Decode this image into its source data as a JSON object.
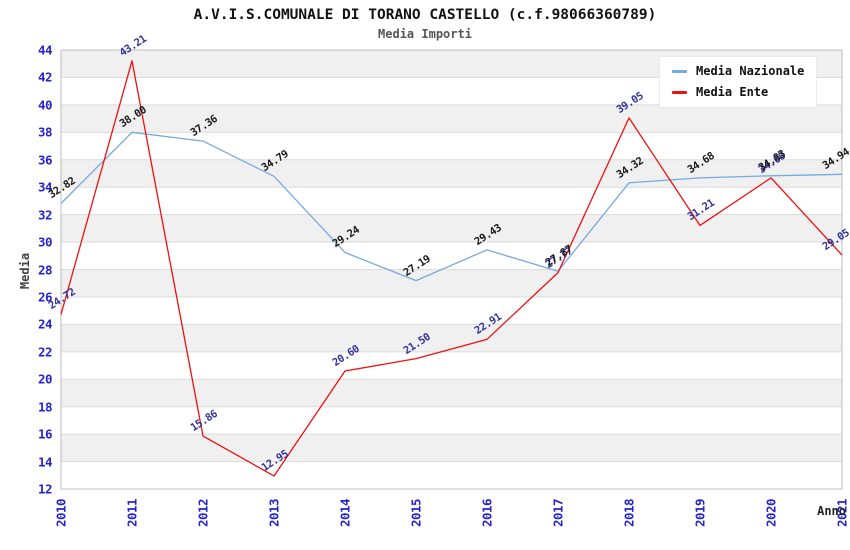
{
  "chart_data": {
    "type": "line",
    "title": "A.V.I.S.COMUNALE DI TORANO CASTELLO (c.f.98066360789)",
    "subtitle": "Media Importi",
    "xlabel": "Anno",
    "ylabel": "Media",
    "x": [
      "2010",
      "2011",
      "2012",
      "2013",
      "2014",
      "2015",
      "2016",
      "2017",
      "2018",
      "2019",
      "2020",
      "2021"
    ],
    "series": [
      {
        "name": "Media Nazionale",
        "color": "#76aadf",
        "label_color": "#1a1a1a",
        "values": [
          32.82,
          38.0,
          37.36,
          34.79,
          29.24,
          27.19,
          29.43,
          27.87,
          34.32,
          34.68,
          34.83,
          34.94
        ]
      },
      {
        "name": "Media Ente",
        "color": "#ee1111",
        "label_color": "#333399",
        "values": [
          24.72,
          43.21,
          15.86,
          12.95,
          20.6,
          21.5,
          22.91,
          27.77,
          39.05,
          31.21,
          34.68,
          29.05
        ]
      }
    ],
    "ylim": [
      12,
      44
    ],
    "ytick_step": 2,
    "grid": "horizontal-bands-alternating",
    "legend_position": "top-right",
    "colors": {
      "band": "#f0f0f0",
      "gridline": "#dcdcdc",
      "plot_border": "#bdbdbd",
      "axis_tick_text": "#2424cc"
    }
  }
}
